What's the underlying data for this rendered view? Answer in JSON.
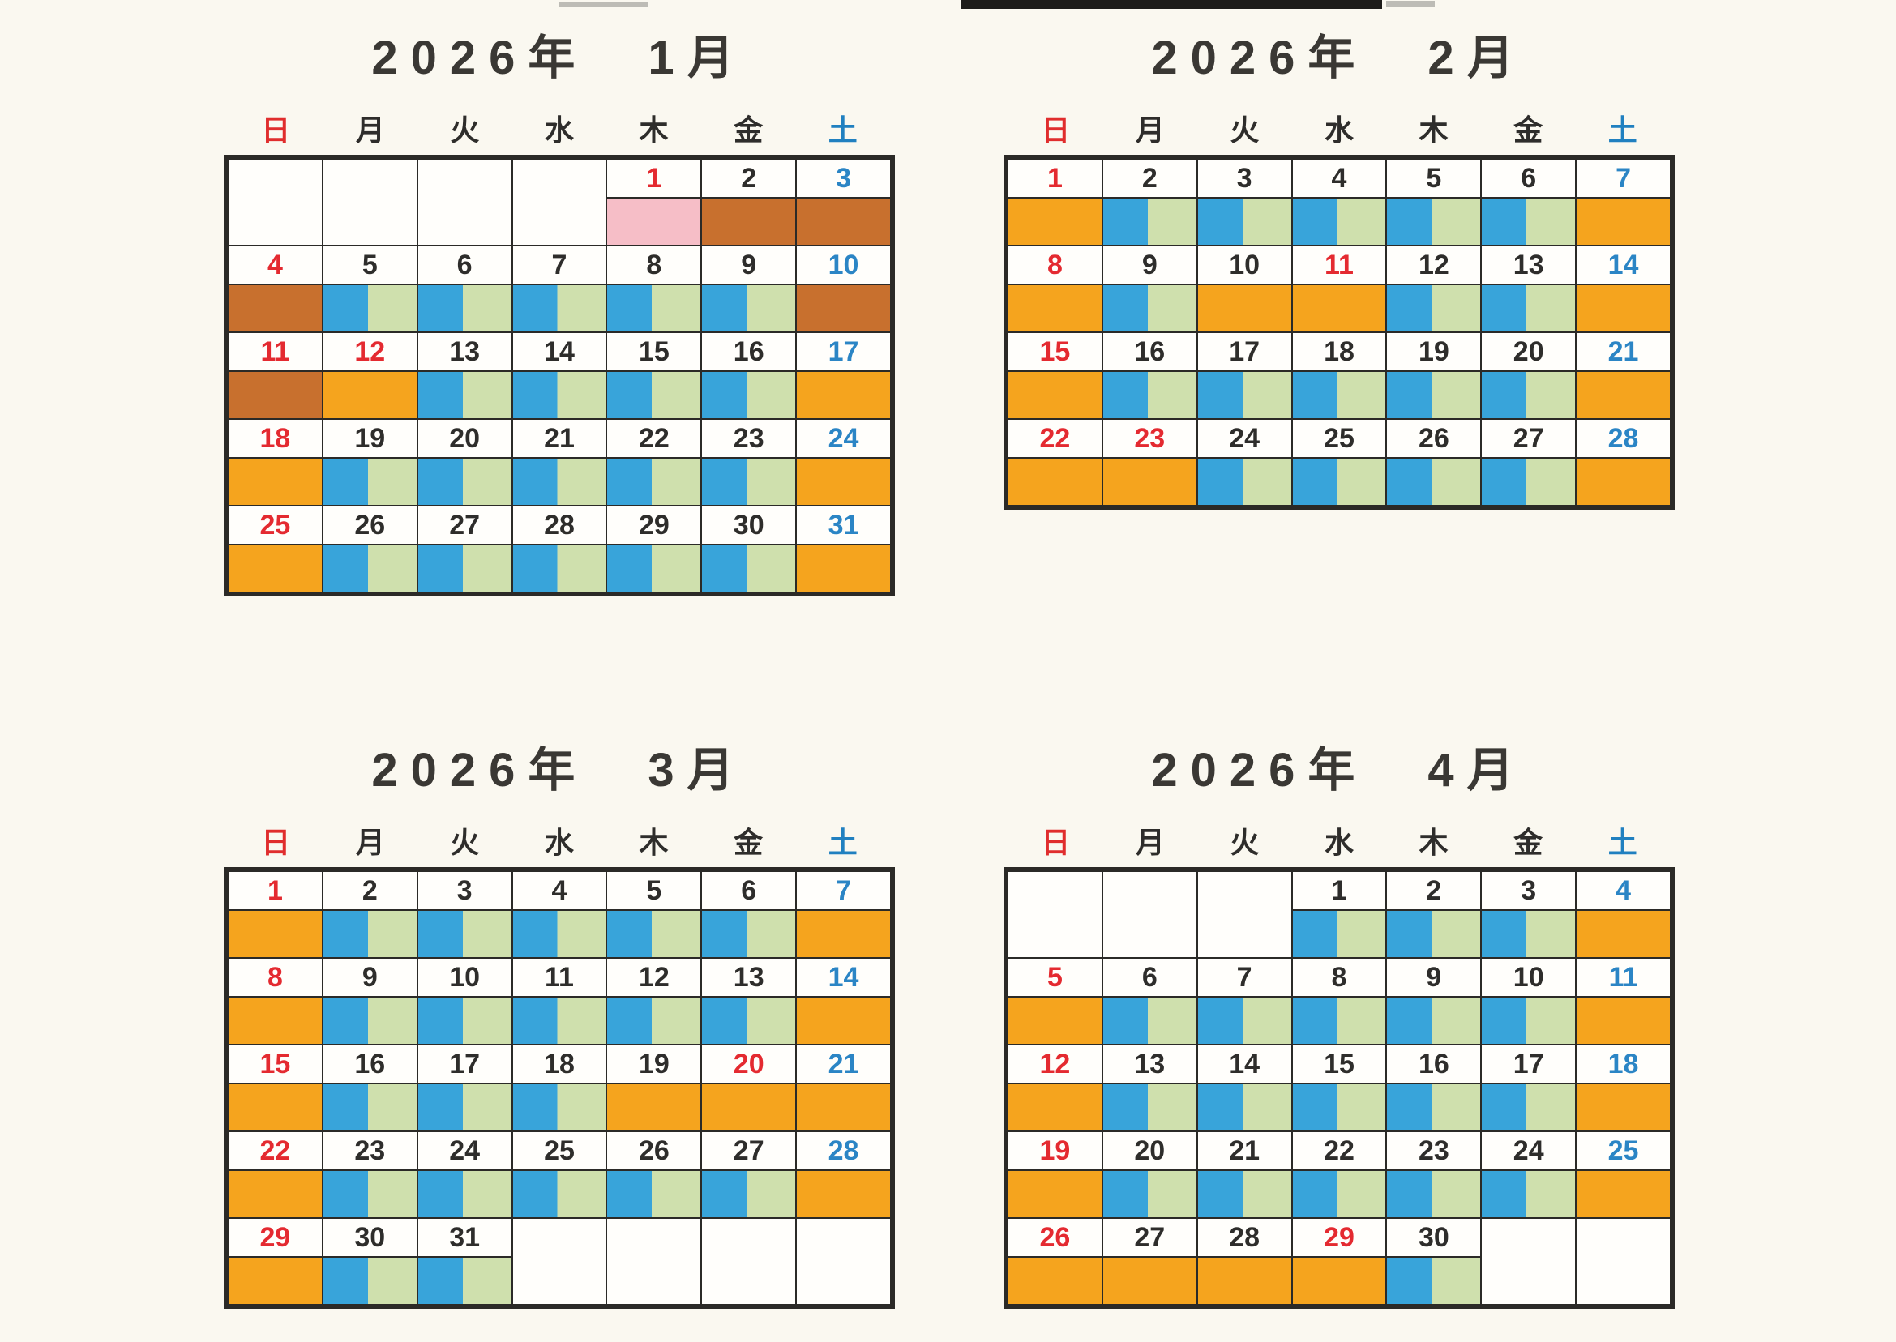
{
  "artifact_note": "scanner dark strip at top edge",
  "colors": {
    "paper": "#faf8f0",
    "cell_white": "#fffefb",
    "grid_line": "#2b2a27",
    "title_text": "#3a3834",
    "date_black": "#2e2d2b",
    "date_red": "#e42a30",
    "date_blue": "#2b85c5",
    "header_red": "#e02d2d",
    "header_blue": "#2080c0",
    "band_orange": "#f5a41e",
    "band_brown": "#c8702e",
    "band_pink": "#f6bec7",
    "band_blue": "#38a4da",
    "band_green": "#cfe0ad"
  },
  "weekday_headers": [
    {
      "label": "日",
      "color": "red"
    },
    {
      "label": "月",
      "color": "black"
    },
    {
      "label": "火",
      "color": "black"
    },
    {
      "label": "水",
      "color": "black"
    },
    {
      "label": "木",
      "color": "black"
    },
    {
      "label": "金",
      "color": "black"
    },
    {
      "label": "土",
      "color": "blue"
    }
  ],
  "months": [
    {
      "title": "2026年　1月",
      "weeks": [
        [
          null,
          null,
          null,
          null,
          {
            "d": "1",
            "c": "red",
            "b": "pink"
          },
          {
            "d": "2",
            "c": "black",
            "b": "brown"
          },
          {
            "d": "3",
            "c": "blue",
            "b": "brown"
          }
        ],
        [
          {
            "d": "4",
            "c": "red",
            "b": "brown"
          },
          {
            "d": "5",
            "c": "black",
            "b": "bg"
          },
          {
            "d": "6",
            "c": "black",
            "b": "bg"
          },
          {
            "d": "7",
            "c": "black",
            "b": "bg"
          },
          {
            "d": "8",
            "c": "black",
            "b": "bg"
          },
          {
            "d": "9",
            "c": "black",
            "b": "bg"
          },
          {
            "d": "10",
            "c": "blue",
            "b": "brown"
          }
        ],
        [
          {
            "d": "11",
            "c": "red",
            "b": "brown"
          },
          {
            "d": "12",
            "c": "red",
            "b": "orange"
          },
          {
            "d": "13",
            "c": "black",
            "b": "bg"
          },
          {
            "d": "14",
            "c": "black",
            "b": "bg"
          },
          {
            "d": "15",
            "c": "black",
            "b": "bg"
          },
          {
            "d": "16",
            "c": "black",
            "b": "bg"
          },
          {
            "d": "17",
            "c": "blue",
            "b": "orange"
          }
        ],
        [
          {
            "d": "18",
            "c": "red",
            "b": "orange"
          },
          {
            "d": "19",
            "c": "black",
            "b": "bg"
          },
          {
            "d": "20",
            "c": "black",
            "b": "bg"
          },
          {
            "d": "21",
            "c": "black",
            "b": "bg"
          },
          {
            "d": "22",
            "c": "black",
            "b": "bg"
          },
          {
            "d": "23",
            "c": "black",
            "b": "bg"
          },
          {
            "d": "24",
            "c": "blue",
            "b": "orange"
          }
        ],
        [
          {
            "d": "25",
            "c": "red",
            "b": "orange"
          },
          {
            "d": "26",
            "c": "black",
            "b": "bg"
          },
          {
            "d": "27",
            "c": "black",
            "b": "bg"
          },
          {
            "d": "28",
            "c": "black",
            "b": "bg"
          },
          {
            "d": "29",
            "c": "black",
            "b": "bg"
          },
          {
            "d": "30",
            "c": "black",
            "b": "bg"
          },
          {
            "d": "31",
            "c": "blue",
            "b": "orange"
          }
        ]
      ]
    },
    {
      "title": "2026年　2月",
      "weeks": [
        [
          {
            "d": "1",
            "c": "red",
            "b": "orange"
          },
          {
            "d": "2",
            "c": "black",
            "b": "bg"
          },
          {
            "d": "3",
            "c": "black",
            "b": "bg"
          },
          {
            "d": "4",
            "c": "black",
            "b": "bg"
          },
          {
            "d": "5",
            "c": "black",
            "b": "bg"
          },
          {
            "d": "6",
            "c": "black",
            "b": "bg"
          },
          {
            "d": "7",
            "c": "blue",
            "b": "orange"
          }
        ],
        [
          {
            "d": "8",
            "c": "red",
            "b": "orange"
          },
          {
            "d": "9",
            "c": "black",
            "b": "bg"
          },
          {
            "d": "10",
            "c": "black",
            "b": "orange"
          },
          {
            "d": "11",
            "c": "red",
            "b": "orange"
          },
          {
            "d": "12",
            "c": "black",
            "b": "bg"
          },
          {
            "d": "13",
            "c": "black",
            "b": "bg"
          },
          {
            "d": "14",
            "c": "blue",
            "b": "orange"
          }
        ],
        [
          {
            "d": "15",
            "c": "red",
            "b": "orange"
          },
          {
            "d": "16",
            "c": "black",
            "b": "bg"
          },
          {
            "d": "17",
            "c": "black",
            "b": "bg"
          },
          {
            "d": "18",
            "c": "black",
            "b": "bg"
          },
          {
            "d": "19",
            "c": "black",
            "b": "bg"
          },
          {
            "d": "20",
            "c": "black",
            "b": "bg"
          },
          {
            "d": "21",
            "c": "blue",
            "b": "orange"
          }
        ],
        [
          {
            "d": "22",
            "c": "red",
            "b": "orange"
          },
          {
            "d": "23",
            "c": "red",
            "b": "orange"
          },
          {
            "d": "24",
            "c": "black",
            "b": "bg"
          },
          {
            "d": "25",
            "c": "black",
            "b": "bg"
          },
          {
            "d": "26",
            "c": "black",
            "b": "bg"
          },
          {
            "d": "27",
            "c": "black",
            "b": "bg"
          },
          {
            "d": "28",
            "c": "blue",
            "b": "orange"
          }
        ]
      ]
    },
    {
      "title": "2026年　3月",
      "weeks": [
        [
          {
            "d": "1",
            "c": "red",
            "b": "orange"
          },
          {
            "d": "2",
            "c": "black",
            "b": "bg"
          },
          {
            "d": "3",
            "c": "black",
            "b": "bg"
          },
          {
            "d": "4",
            "c": "black",
            "b": "bg"
          },
          {
            "d": "5",
            "c": "black",
            "b": "bg"
          },
          {
            "d": "6",
            "c": "black",
            "b": "bg"
          },
          {
            "d": "7",
            "c": "blue",
            "b": "orange"
          }
        ],
        [
          {
            "d": "8",
            "c": "red",
            "b": "orange"
          },
          {
            "d": "9",
            "c": "black",
            "b": "bg"
          },
          {
            "d": "10",
            "c": "black",
            "b": "bg"
          },
          {
            "d": "11",
            "c": "black",
            "b": "bg"
          },
          {
            "d": "12",
            "c": "black",
            "b": "bg"
          },
          {
            "d": "13",
            "c": "black",
            "b": "bg"
          },
          {
            "d": "14",
            "c": "blue",
            "b": "orange"
          }
        ],
        [
          {
            "d": "15",
            "c": "red",
            "b": "orange"
          },
          {
            "d": "16",
            "c": "black",
            "b": "bg"
          },
          {
            "d": "17",
            "c": "black",
            "b": "bg"
          },
          {
            "d": "18",
            "c": "black",
            "b": "bg"
          },
          {
            "d": "19",
            "c": "black",
            "b": "orange"
          },
          {
            "d": "20",
            "c": "red",
            "b": "orange"
          },
          {
            "d": "21",
            "c": "blue",
            "b": "orange"
          }
        ],
        [
          {
            "d": "22",
            "c": "red",
            "b": "orange"
          },
          {
            "d": "23",
            "c": "black",
            "b": "bg"
          },
          {
            "d": "24",
            "c": "black",
            "b": "bg"
          },
          {
            "d": "25",
            "c": "black",
            "b": "bg"
          },
          {
            "d": "26",
            "c": "black",
            "b": "bg"
          },
          {
            "d": "27",
            "c": "black",
            "b": "bg"
          },
          {
            "d": "28",
            "c": "blue",
            "b": "orange"
          }
        ],
        [
          {
            "d": "29",
            "c": "red",
            "b": "orange"
          },
          {
            "d": "30",
            "c": "black",
            "b": "bg"
          },
          {
            "d": "31",
            "c": "black",
            "b": "bg"
          },
          null,
          null,
          null,
          null
        ]
      ]
    },
    {
      "title": "2026年　4月",
      "weeks": [
        [
          null,
          null,
          null,
          {
            "d": "1",
            "c": "black",
            "b": "bg"
          },
          {
            "d": "2",
            "c": "black",
            "b": "bg"
          },
          {
            "d": "3",
            "c": "black",
            "b": "bg"
          },
          {
            "d": "4",
            "c": "blue",
            "b": "orange"
          }
        ],
        [
          {
            "d": "5",
            "c": "red",
            "b": "orange"
          },
          {
            "d": "6",
            "c": "black",
            "b": "bg"
          },
          {
            "d": "7",
            "c": "black",
            "b": "bg"
          },
          {
            "d": "8",
            "c": "black",
            "b": "bg"
          },
          {
            "d": "9",
            "c": "black",
            "b": "bg"
          },
          {
            "d": "10",
            "c": "black",
            "b": "bg"
          },
          {
            "d": "11",
            "c": "blue",
            "b": "orange"
          }
        ],
        [
          {
            "d": "12",
            "c": "red",
            "b": "orange"
          },
          {
            "d": "13",
            "c": "black",
            "b": "bg"
          },
          {
            "d": "14",
            "c": "black",
            "b": "bg"
          },
          {
            "d": "15",
            "c": "black",
            "b": "bg"
          },
          {
            "d": "16",
            "c": "black",
            "b": "bg"
          },
          {
            "d": "17",
            "c": "black",
            "b": "bg"
          },
          {
            "d": "18",
            "c": "blue",
            "b": "orange"
          }
        ],
        [
          {
            "d": "19",
            "c": "red",
            "b": "orange"
          },
          {
            "d": "20",
            "c": "black",
            "b": "bg"
          },
          {
            "d": "21",
            "c": "black",
            "b": "bg"
          },
          {
            "d": "22",
            "c": "black",
            "b": "bg"
          },
          {
            "d": "23",
            "c": "black",
            "b": "bg"
          },
          {
            "d": "24",
            "c": "black",
            "b": "bg"
          },
          {
            "d": "25",
            "c": "blue",
            "b": "orange"
          }
        ],
        [
          {
            "d": "26",
            "c": "red",
            "b": "orange"
          },
          {
            "d": "27",
            "c": "black",
            "b": "orange"
          },
          {
            "d": "28",
            "c": "black",
            "b": "orange"
          },
          {
            "d": "29",
            "c": "red",
            "b": "orange"
          },
          {
            "d": "30",
            "c": "black",
            "b": "bg"
          },
          null,
          null
        ]
      ]
    }
  ]
}
